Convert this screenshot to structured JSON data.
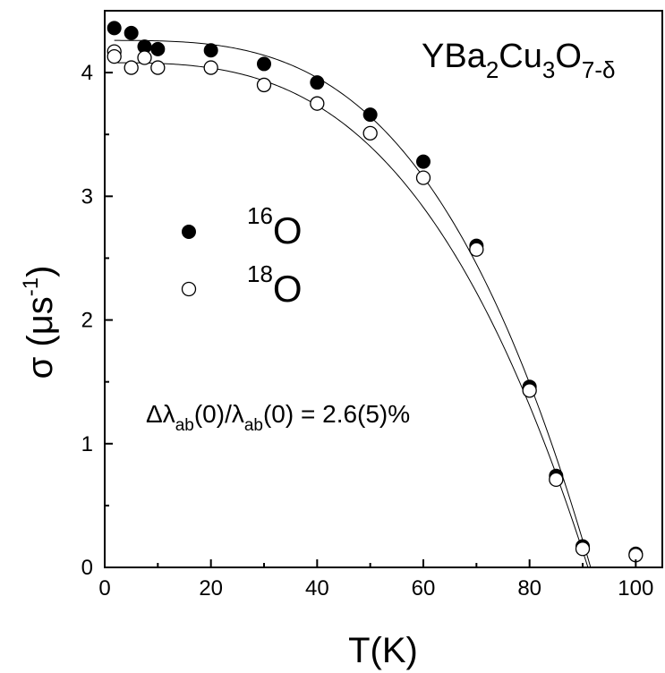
{
  "chart_data": {
    "type": "scatter",
    "xlabel": "T(K)",
    "ylabel": {
      "main": "σ (μs",
      "sup": "-1",
      "close": ")"
    },
    "xlim": [
      0,
      105
    ],
    "ylim": [
      0,
      4.5
    ],
    "x_ticks": [
      0,
      20,
      40,
      60,
      80,
      100
    ],
    "y_ticks": [
      0,
      1,
      2,
      3,
      4
    ],
    "grid": false,
    "title": {
      "base1": "YBa",
      "sub1": "2",
      "base2": "Cu",
      "sub2": "3",
      "base3": "O",
      "sub3": "7-δ"
    },
    "annotation": {
      "p1": "Δλ",
      "s1": "ab",
      "p2": "(0)/λ",
      "s2": "ab",
      "p3": "(0) = 2.6(5)%"
    },
    "legend_position": "center-left",
    "series": [
      {
        "name": {
          "sup": "16",
          "base": "O"
        },
        "marker": "filled-circle",
        "points": [
          [
            1.8,
            4.36
          ],
          [
            5,
            4.32
          ],
          [
            7.5,
            4.21
          ],
          [
            10,
            4.19
          ],
          [
            20,
            4.18
          ],
          [
            30,
            4.07
          ],
          [
            40,
            3.92
          ],
          [
            50,
            3.66
          ],
          [
            60,
            3.28
          ],
          [
            70,
            2.6
          ],
          [
            80,
            1.46
          ],
          [
            85,
            0.74
          ],
          [
            90,
            0.17
          ],
          [
            100,
            0.11
          ]
        ]
      },
      {
        "name": {
          "sup": "18",
          "base": "O"
        },
        "marker": "open-circle",
        "points": [
          [
            1.8,
            4.17
          ],
          [
            1.8,
            4.13
          ],
          [
            5,
            4.04
          ],
          [
            7.5,
            4.12
          ],
          [
            10,
            4.04
          ],
          [
            20,
            4.04
          ],
          [
            30,
            3.9
          ],
          [
            40,
            3.75
          ],
          [
            50,
            3.51
          ],
          [
            60,
            3.15
          ],
          [
            70,
            2.57
          ],
          [
            80,
            1.43
          ],
          [
            85,
            0.71
          ],
          [
            90,
            0.15
          ],
          [
            100,
            0.1
          ]
        ]
      }
    ],
    "fits": [
      {
        "sigma0": 4.26,
        "tc": 91.5,
        "n": 3.2
      },
      {
        "sigma0": 4.08,
        "tc": 91.0,
        "n": 3.0
      }
    ]
  }
}
